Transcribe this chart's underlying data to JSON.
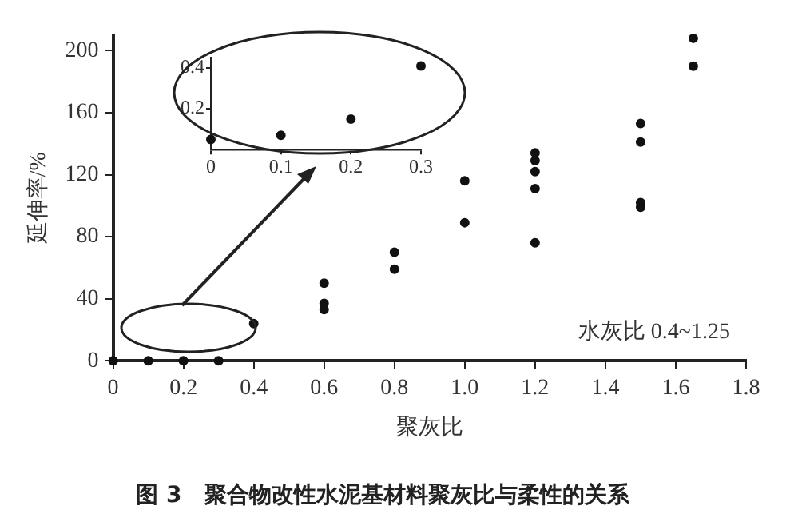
{
  "chart_data": [
    {
      "type": "scatter",
      "title": "图 3　聚合物改性水泥基材料聚灰比与柔性的关系",
      "xlabel": "聚灰比",
      "ylabel": "延伸率/%",
      "annotations": [
        "水灰比 0.4~1.25"
      ],
      "x": [
        0,
        0.1,
        0.2,
        0.3,
        0.4,
        0.6,
        0.6,
        0.6,
        0.8,
        0.8,
        1.0,
        1.0,
        1.2,
        1.2,
        1.2,
        1.2,
        1.2,
        1.5,
        1.5,
        1.5,
        1.5,
        1.65,
        1.65
      ],
      "values": [
        0,
        0,
        0,
        0,
        24,
        50,
        37,
        33,
        70,
        59,
        116,
        89,
        134,
        129,
        122,
        111,
        76,
        153,
        141,
        102,
        99,
        208,
        190
      ],
      "color": "#111111",
      "marker": "circle",
      "xlim": [
        0,
        1.8
      ],
      "xticks": [
        0,
        0.2,
        0.4,
        0.6,
        0.8,
        {
          "value": 1,
          "label": "1.0"
        },
        1.2,
        1.4,
        1.6,
        1.8
      ],
      "ylim": [
        0,
        210
      ],
      "yticks": [
        0,
        40,
        80,
        120,
        160,
        200
      ]
    },
    {
      "type": "scatter",
      "x": [
        0,
        0.1,
        0.2,
        0.3
      ],
      "values": [
        0.05,
        0.07,
        0.15,
        0.41
      ],
      "color": "#111111",
      "marker": "circle",
      "xlim": [
        0,
        0.3
      ],
      "xticks": [
        0,
        0.1,
        0.2,
        0.3
      ],
      "ylim": [
        0,
        0.45
      ],
      "yticks": [
        0.2,
        0.4
      ]
    }
  ]
}
